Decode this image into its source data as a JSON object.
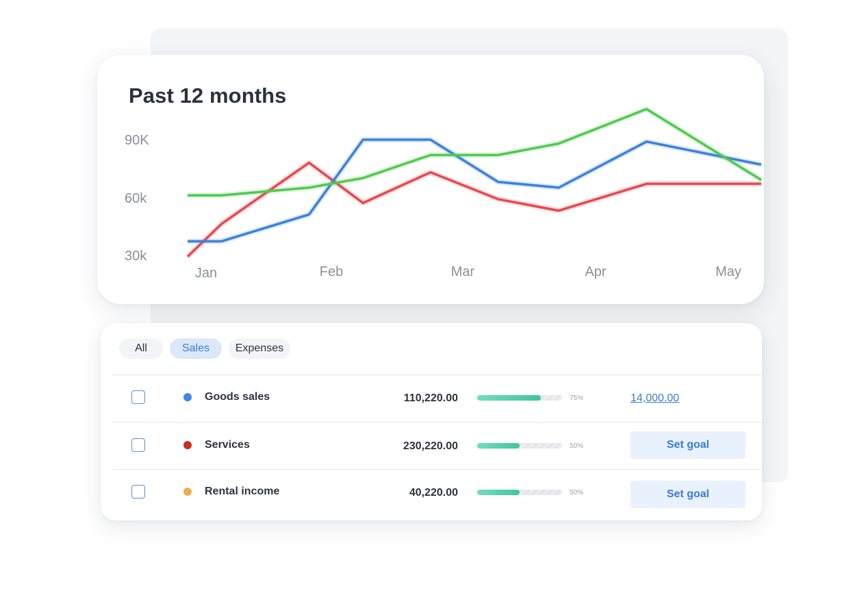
{
  "chart_card": {
    "title": "Past 12 months"
  },
  "chart_data": {
    "type": "line",
    "title": "Past 12 months",
    "y_tick_labels": [
      "90K",
      "60k",
      "30k"
    ],
    "x_tick_labels": [
      "Jan",
      "Feb",
      "Mar",
      "Apr",
      "May"
    ],
    "grid": false,
    "series": [
      {
        "color": "#e8484e",
        "points": [
          [
            0.0,
            29
          ],
          [
            0.25,
            46
          ],
          [
            0.9,
            78
          ],
          [
            1.3,
            57
          ],
          [
            1.8,
            73
          ],
          [
            2.3,
            59
          ],
          [
            2.75,
            53
          ],
          [
            3.4,
            67
          ],
          [
            4.0,
            67
          ],
          [
            4.25,
            67
          ]
        ]
      },
      {
        "color": "#3b82dc",
        "points": [
          [
            0.0,
            37
          ],
          [
            0.25,
            37
          ],
          [
            0.9,
            51
          ],
          [
            1.3,
            90
          ],
          [
            1.8,
            90
          ],
          [
            2.3,
            68
          ],
          [
            2.75,
            65
          ],
          [
            3.4,
            89
          ],
          [
            4.25,
            77
          ]
        ]
      },
      {
        "color": "#4fca4f",
        "points": [
          [
            0.0,
            61
          ],
          [
            0.25,
            61
          ],
          [
            0.9,
            65
          ],
          [
            1.3,
            70
          ],
          [
            1.8,
            82
          ],
          [
            2.3,
            82
          ],
          [
            2.75,
            88
          ],
          [
            3.4,
            106
          ],
          [
            4.25,
            69
          ]
        ]
      }
    ]
  },
  "filters": [
    {
      "label": "All",
      "active": false
    },
    {
      "label": "Sales",
      "active": true
    },
    {
      "label": "Expenses",
      "active": false
    }
  ],
  "rows": [
    {
      "label": "Goods sales",
      "dot_color": "#4384e8",
      "amount": "110,220.00",
      "progress": 0.75,
      "progress_label": "75%",
      "goal_type": "link",
      "goal": "14,000.00"
    },
    {
      "label": "Services",
      "dot_color": "#c9301f",
      "amount": "230,220.00",
      "progress": 0.5,
      "progress_label": "50%",
      "goal_type": "button",
      "goal": "Set goal"
    },
    {
      "label": "Rental income",
      "dot_color": "#e6b24f",
      "amount": "40,220.00",
      "progress": 0.5,
      "progress_label": "50%",
      "goal_type": "button",
      "goal": "Set goal"
    }
  ]
}
